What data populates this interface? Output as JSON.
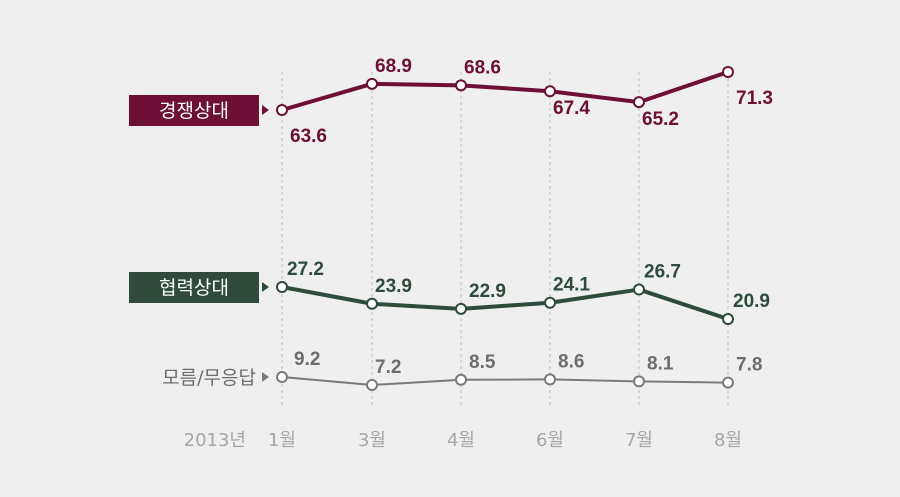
{
  "chart_data": {
    "type": "line",
    "year_label": "2013년",
    "categories": [
      "1월",
      "3월",
      "4월",
      "6월",
      "7월",
      "8월"
    ],
    "series": [
      {
        "name": "경쟁상대",
        "values": [
          63.6,
          68.9,
          68.6,
          67.4,
          65.2,
          71.3
        ],
        "color": "#6e0f35",
        "label_style": "box"
      },
      {
        "name": "협력상대",
        "values": [
          27.2,
          23.9,
          22.9,
          24.1,
          26.7,
          20.9
        ],
        "color": "#2f4b3c",
        "label_style": "box"
      },
      {
        "name": "모름/무응답",
        "values": [
          9.2,
          7.2,
          8.5,
          8.6,
          8.1,
          7.8
        ],
        "color": "#7a7a7a",
        "label_style": "plain"
      }
    ],
    "value_label_color": "#6d6d6d",
    "grid": "vertical dashed",
    "legend": "left, at line start"
  }
}
